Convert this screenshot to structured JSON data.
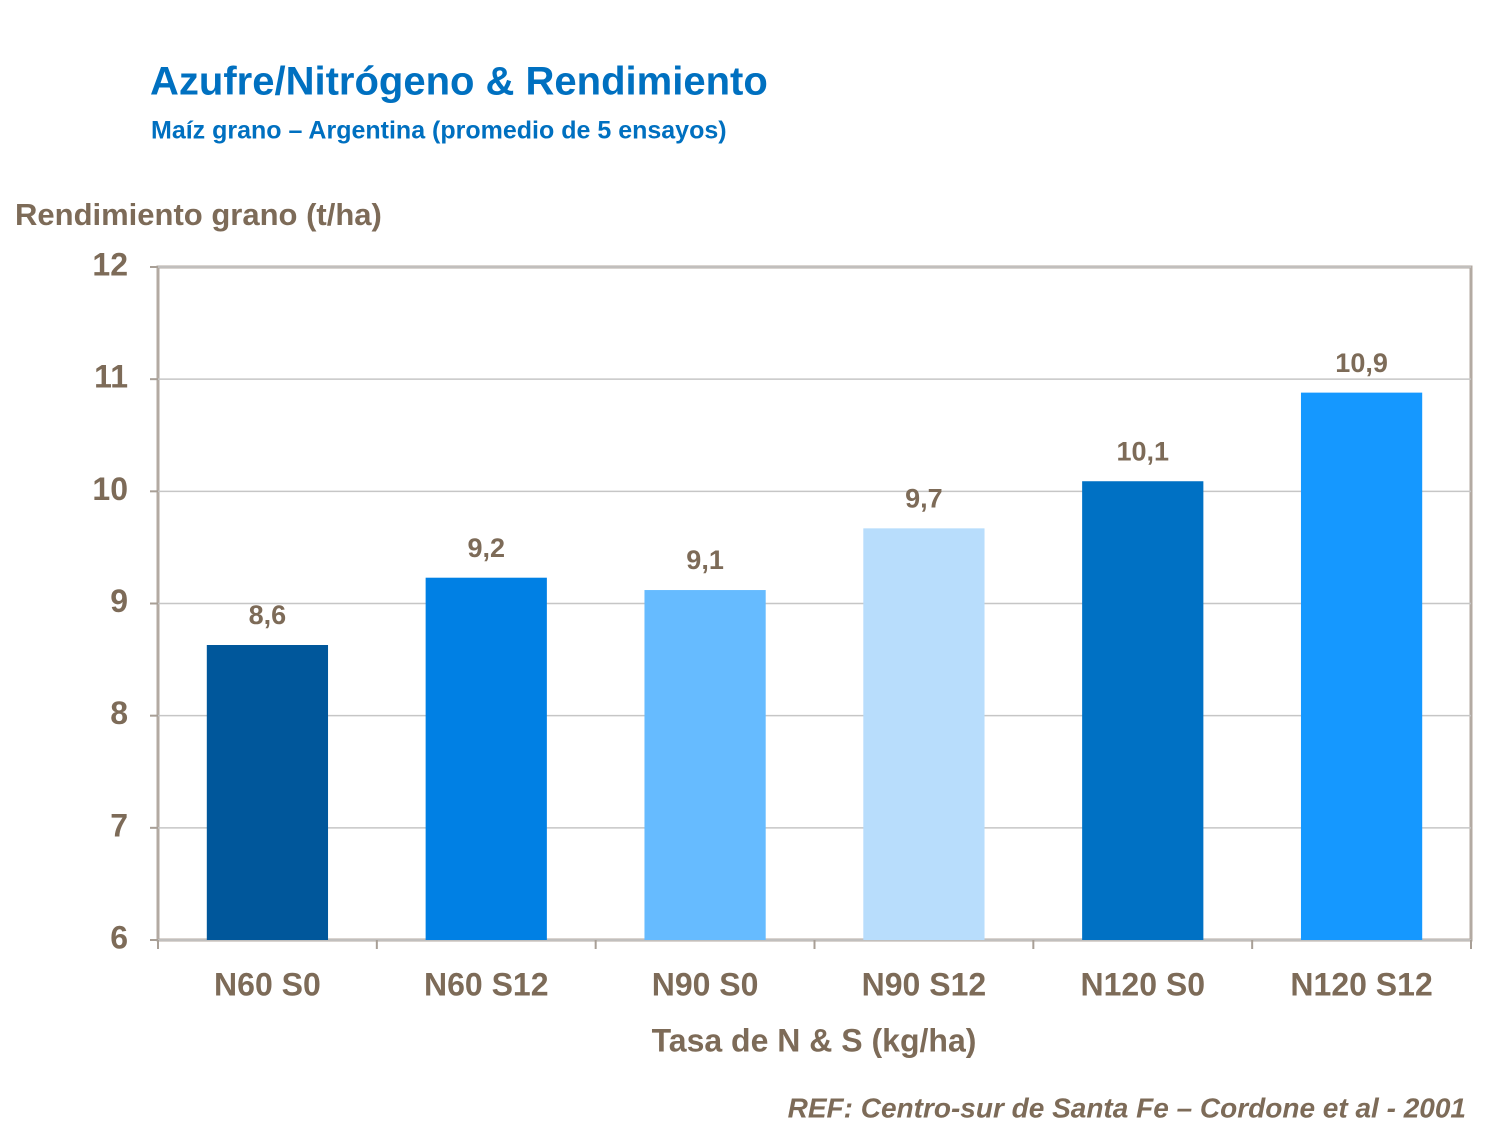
{
  "chart_data": {
    "type": "bar",
    "title": "Azufre/Nitrógeno & Rendimiento",
    "subtitle": "Maíz grano – Argentina (promedio de 5 ensayos)",
    "y_label": "Rendimiento grano (t/ha)",
    "x_label": "Tasa de N & S (kg/ha)",
    "source": "REF: Centro-sur de Santa Fe – Cordone et al - 2001",
    "categories": [
      "N60 S0",
      "N60 S12",
      "N90 S0",
      "N90 S12",
      "N120 S0",
      "N120 S12"
    ],
    "values": [
      8.63,
      9.23,
      9.12,
      9.67,
      10.09,
      10.88
    ],
    "value_labels": [
      "8,6",
      "9,2",
      "9,1",
      "9,7",
      "10,1",
      "10,9"
    ],
    "colors": [
      "#00579b",
      "#0080e4",
      "#66bbff",
      "#b8ddfc",
      "#0071c4",
      "#1598ff"
    ],
    "ylim": [
      6,
      12
    ],
    "yticks": [
      6,
      7,
      8,
      9,
      10,
      11,
      12
    ],
    "grid": true
  }
}
